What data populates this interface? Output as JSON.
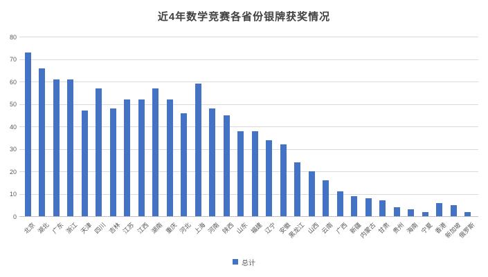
{
  "chart_data": {
    "type": "bar",
    "title": "近4年数学竞赛各省份银牌获奖情况",
    "series_name": "总计",
    "categories": [
      "北京",
      "湖北",
      "广东",
      "浙江",
      "天津",
      "四川",
      "吉林",
      "江苏",
      "江西",
      "湖南",
      "重庆",
      "河北",
      "上海",
      "河南",
      "陕西",
      "山东",
      "福建",
      "辽宁",
      "安徽",
      "黑龙江",
      "山西",
      "云南",
      "广西",
      "新疆",
      "内蒙古",
      "甘肃",
      "贵州",
      "海南",
      "宁夏",
      "香港",
      "新加坡",
      "俄罗斯"
    ],
    "values": [
      73,
      66,
      61,
      61,
      47,
      57,
      48,
      52,
      52,
      57,
      52,
      46,
      59,
      48,
      45,
      38,
      38,
      34,
      32,
      24,
      20,
      16,
      11,
      9,
      8,
      7,
      4,
      3,
      2,
      6,
      5,
      2
    ],
    "ylim": [
      0,
      80
    ],
    "ytick_step": 10,
    "yticks": [
      "0",
      "10",
      "20",
      "30",
      "40",
      "50",
      "60",
      "70",
      "80"
    ],
    "grid": true,
    "legend_position": "bottom",
    "xlabel": "",
    "ylabel": "",
    "colors": {
      "bar": "#4472C4",
      "gridline": "#D9D9D9",
      "axis_line": "#BFBFBF",
      "tick_text": "#595959",
      "title_text": "#404040"
    }
  }
}
